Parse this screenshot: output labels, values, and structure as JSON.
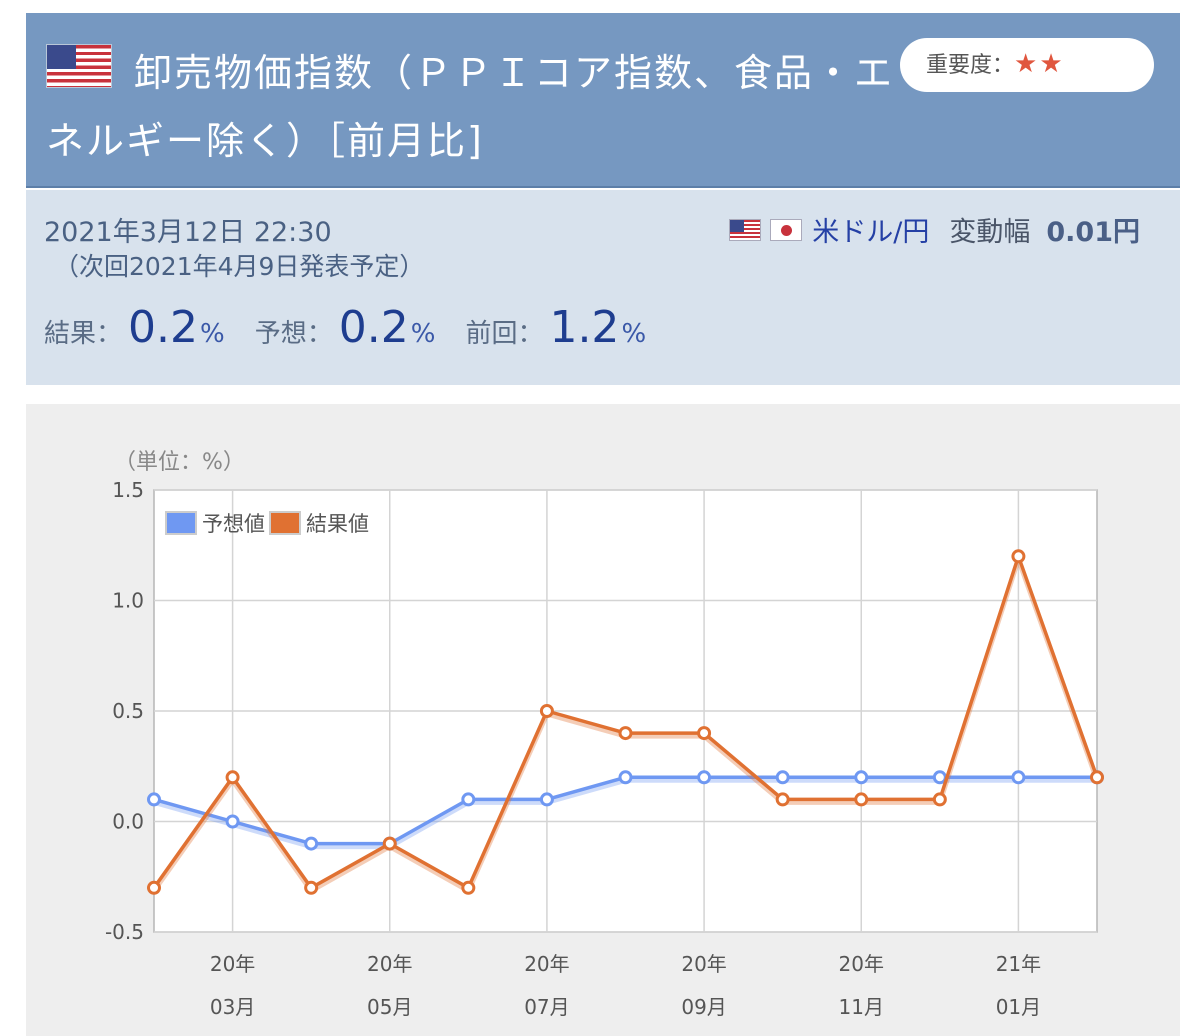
{
  "header": {
    "title": "卸売物価指数（ＰＰＩコア指数、食品・エネルギー除く）［前月比]",
    "importance_label": "重要度：",
    "importance_stars": "★★"
  },
  "info": {
    "date": "2021年3月12日 22:30",
    "next": "（次回2021年4月9日発表予定）",
    "pair": "米ドル/円",
    "range_label": "変動幅",
    "range_value": "0.01円",
    "result_label": "結果：",
    "result_value": "0.2",
    "forecast_label": "予想：",
    "forecast_value": "0.2",
    "previous_label": "前回：",
    "previous_value": "1.2",
    "unit": "%"
  },
  "chart_data": {
    "type": "line",
    "unit_label": "（単位：%）",
    "ylim": [
      -0.5,
      1.5
    ],
    "yticks": [
      "1.5",
      "1.0",
      "0.5",
      "0.0",
      "-0.5"
    ],
    "x": [
      "2020-02",
      "2020-03",
      "2020-04",
      "2020-05",
      "2020-06",
      "2020-07",
      "2020-08",
      "2020-09",
      "2020-10",
      "2020-11",
      "2020-12",
      "2021-01",
      "2021-02"
    ],
    "xtick_labels": [
      {
        "year": "20年",
        "month": "03月"
      },
      {
        "year": "20年",
        "month": "05月"
      },
      {
        "year": "20年",
        "month": "07月"
      },
      {
        "year": "20年",
        "month": "09月"
      },
      {
        "year": "20年",
        "month": "11月"
      },
      {
        "year": "21年",
        "month": "01月"
      }
    ],
    "series": [
      {
        "name": "予想値",
        "color": "#6f98f2",
        "values": [
          0.1,
          0.0,
          -0.1,
          -0.1,
          0.1,
          0.1,
          0.2,
          0.2,
          0.2,
          0.2,
          0.2,
          0.2,
          0.2
        ]
      },
      {
        "name": "結果値",
        "color": "#e07132",
        "values": [
          -0.3,
          0.2,
          -0.3,
          -0.1,
          -0.3,
          0.5,
          0.4,
          0.4,
          0.1,
          0.1,
          0.1,
          1.2,
          0.2
        ]
      }
    ],
    "grid": true,
    "legend": "top-left"
  }
}
